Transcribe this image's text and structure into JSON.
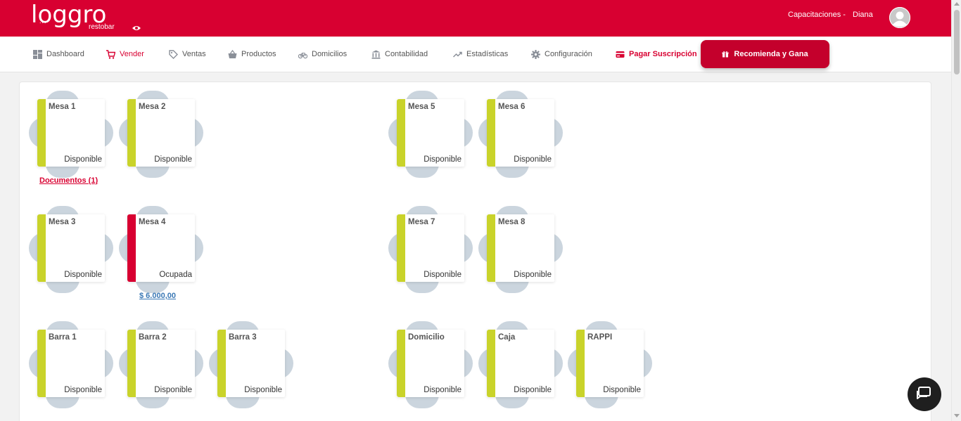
{
  "brand": {
    "logo_text": "loggro",
    "logo_dots": "...",
    "logo_sub": "restobar"
  },
  "user": {
    "company": "Capacitaciones -",
    "name": "Diana"
  },
  "nav": {
    "items": [
      {
        "label": "Dashboard",
        "icon": "dashboard-icon"
      },
      {
        "label": "Vender",
        "icon": "cart-icon"
      },
      {
        "label": "Ventas",
        "icon": "tag-icon"
      },
      {
        "label": "Productos",
        "icon": "basket-icon"
      },
      {
        "label": "Domicilios",
        "icon": "bicycle-icon"
      },
      {
        "label": "Contabilidad",
        "icon": "bank-icon"
      },
      {
        "label": "Estadísticas",
        "icon": "trend-icon"
      },
      {
        "label": "Configuración",
        "icon": "gear-icon"
      },
      {
        "label": "Pagar Suscripción",
        "icon": "credit-card-icon"
      }
    ],
    "recommend_label": "Recomienda y Gana"
  },
  "tables": [
    {
      "name": "Mesa 1",
      "status": "Disponible"
    },
    {
      "name": "Mesa 2",
      "status": "Disponible"
    },
    {
      "name": "Mesa 5",
      "status": "Disponible"
    },
    {
      "name": "Mesa 6",
      "status": "Disponible"
    },
    {
      "name": "Mesa 3",
      "status": "Disponible"
    },
    {
      "name": "Mesa 4",
      "status": "Ocupada"
    },
    {
      "name": "Mesa 7",
      "status": "Disponible"
    },
    {
      "name": "Mesa 8",
      "status": "Disponible"
    },
    {
      "name": "Barra 1",
      "status": "Disponible"
    },
    {
      "name": "Barra 2",
      "status": "Disponible"
    },
    {
      "name": "Barra 3",
      "status": "Disponible"
    },
    {
      "name": "Domicilio",
      "status": "Disponible"
    },
    {
      "name": "Caja",
      "status": "Disponible"
    },
    {
      "name": "RAPPI",
      "status": "Disponible"
    }
  ],
  "links": {
    "documents": "Documentos (1)",
    "amount": "$ 6.000,00"
  },
  "colors": {
    "brand": "#d80031",
    "available": "#c9d32a",
    "occupied": "#d80031",
    "chair": "#cbd5de",
    "amount_link": "#3a78b5"
  }
}
